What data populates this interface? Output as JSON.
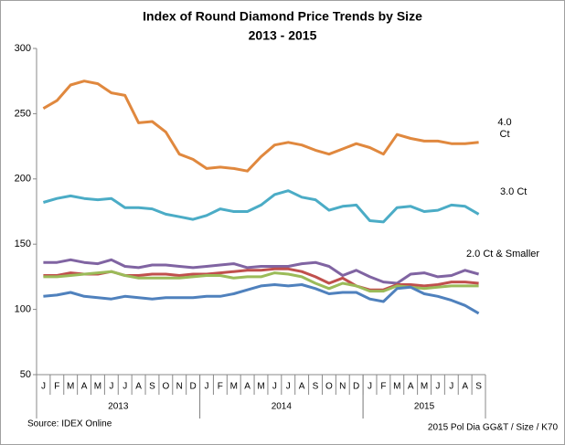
{
  "chart_data": {
    "type": "line",
    "title": "Index of Round Diamond Price Trends by Size",
    "subtitle": "2013 - 2015",
    "categories": [
      "J",
      "F",
      "M",
      "A",
      "M",
      "J",
      "J",
      "A",
      "S",
      "O",
      "N",
      "D",
      "J",
      "F",
      "M",
      "A",
      "M",
      "J",
      "J",
      "A",
      "S",
      "O",
      "N",
      "D",
      "J",
      "F",
      "M",
      "A",
      "M",
      "J",
      "J",
      "A",
      "S"
    ],
    "groups": [
      {
        "label": "2013",
        "count": 12
      },
      {
        "label": "2014",
        "count": 12
      },
      {
        "label": "2015",
        "count": 9
      }
    ],
    "ylim": [
      50,
      300
    ],
    "yticks": [
      50,
      100,
      150,
      200,
      250,
      300
    ],
    "series": [
      {
        "name": "4.0 Ct",
        "color": "#e0883e",
        "values": [
          254,
          260,
          272,
          275,
          273,
          266,
          264,
          243,
          244,
          236,
          219,
          215,
          208,
          209,
          208,
          206,
          217,
          226,
          228,
          226,
          222,
          219,
          223,
          227,
          224,
          219,
          234,
          231,
          229,
          229,
          227,
          227,
          228
        ]
      },
      {
        "name": "3.0 Ct",
        "color": "#4bacc6",
        "values": [
          182,
          185,
          187,
          185,
          184,
          185,
          178,
          178,
          177,
          173,
          171,
          169,
          172,
          177,
          175,
          175,
          180,
          188,
          191,
          186,
          184,
          176,
          179,
          180,
          168,
          167,
          178,
          179,
          175,
          176,
          180,
          179,
          173
        ]
      },
      {
        "name": "2.0 Ct & Smaller",
        "color": "#8064a2",
        "values": [
          136,
          136,
          138,
          136,
          135,
          138,
          133,
          132,
          134,
          134,
          133,
          132,
          133,
          134,
          135,
          132,
          133,
          133,
          133,
          135,
          136,
          133,
          126,
          130,
          125,
          121,
          120,
          127,
          128,
          125,
          126,
          130,
          127
        ]
      },
      {
        "color": "#c0504d",
        "values": [
          126,
          126,
          128,
          127,
          127,
          129,
          126,
          126,
          127,
          127,
          126,
          127,
          127,
          128,
          129,
          130,
          130,
          131,
          131,
          129,
          125,
          120,
          124,
          118,
          115,
          115,
          119,
          119,
          118,
          119,
          121,
          121,
          120
        ]
      },
      {
        "color": "#9bbb59",
        "values": [
          125,
          125,
          126,
          127,
          128,
          129,
          126,
          124,
          124,
          124,
          124,
          125,
          126,
          126,
          124,
          125,
          125,
          128,
          127,
          125,
          120,
          116,
          120,
          118,
          114,
          114,
          118,
          117,
          116,
          117,
          118,
          118,
          118
        ]
      },
      {
        "color": "#4f81bd",
        "values": [
          110,
          111,
          113,
          110,
          109,
          108,
          110,
          109,
          108,
          109,
          109,
          109,
          110,
          110,
          112,
          115,
          118,
          119,
          118,
          119,
          116,
          112,
          113,
          113,
          108,
          106,
          116,
          117,
          112,
          110,
          107,
          103,
          97
        ]
      }
    ],
    "source": "Source:  IDEX Online",
    "note": "2015 Pol Dia GG&T / Size / K70"
  }
}
